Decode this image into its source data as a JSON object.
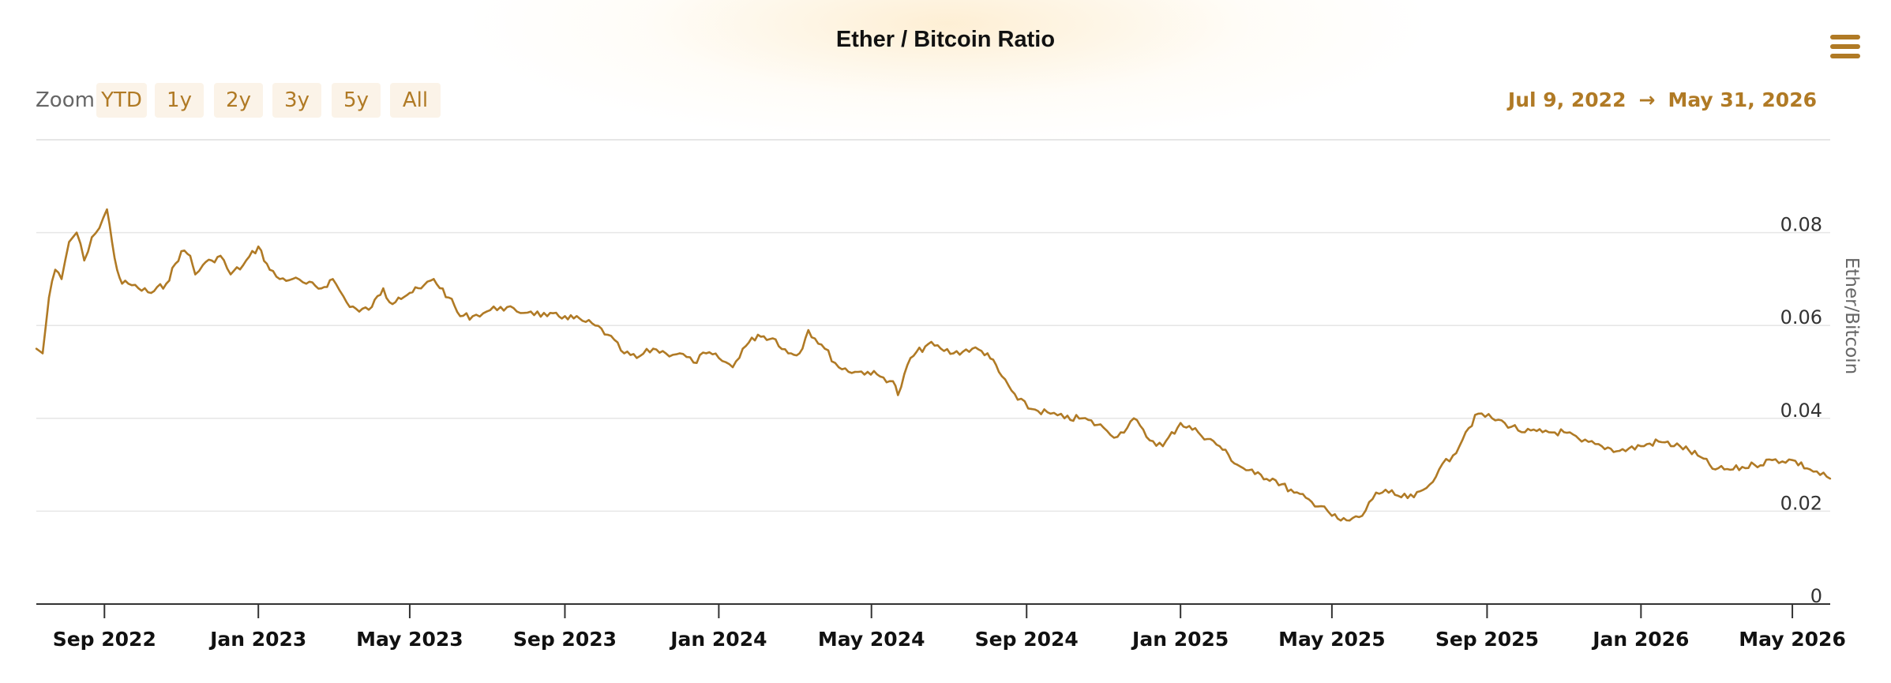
{
  "title": "Ether / Bitcoin Ratio",
  "menu_icon": "hamburger-menu-icon",
  "zoom": {
    "label": "Zoom",
    "buttons": [
      "YTD",
      "1y",
      "2y",
      "3y",
      "5y",
      "All"
    ]
  },
  "range": {
    "from": "Jul 9, 2022",
    "arrow": "→",
    "to": "May 31, 2026"
  },
  "colors": {
    "accent": "#b07a25",
    "line": "#b07a25",
    "grid": "#e6e6e6",
    "button_bg": "#fbf3e8"
  },
  "chart_data": {
    "type": "line",
    "title": "Ether / Bitcoin Ratio",
    "xlabel": "",
    "ylabel": "Ether/Bitcoin",
    "ylim": [
      0,
      0.1
    ],
    "xlim": [
      "2022-07-09",
      "2026-05-31"
    ],
    "yticks": [
      "0",
      "0.02",
      "0.04",
      "0.06",
      "0.08"
    ],
    "xticks": [
      {
        "date": "2022-09-01",
        "label": "Sep 2022"
      },
      {
        "date": "2023-01-01",
        "label": "Jan 2023"
      },
      {
        "date": "2023-05-01",
        "label": "May 2023"
      },
      {
        "date": "2023-09-01",
        "label": "Sep 2023"
      },
      {
        "date": "2024-01-01",
        "label": "Jan 2024"
      },
      {
        "date": "2024-05-01",
        "label": "May 2024"
      },
      {
        "date": "2024-09-01",
        "label": "Sep 2024"
      },
      {
        "date": "2025-01-01",
        "label": "Jan 2025"
      },
      {
        "date": "2025-05-01",
        "label": "May 2025"
      },
      {
        "date": "2025-09-01",
        "label": "Sep 2025"
      },
      {
        "date": "2026-01-01",
        "label": "Jan 2026"
      },
      {
        "date": "2026-05-01",
        "label": "May 2026"
      }
    ],
    "grid": true,
    "legend": "none",
    "series": [
      {
        "x": [
          "2022-07-09",
          "2022-07-14",
          "2022-07-19",
          "2022-07-24",
          "2022-07-29",
          "2022-08-04",
          "2022-08-10",
          "2022-08-16",
          "2022-08-22",
          "2022-08-28",
          "2022-09-03",
          "2022-09-07",
          "2022-09-11",
          "2022-09-15",
          "2022-09-20",
          "2022-09-28",
          "2022-10-08",
          "2022-10-20",
          "2022-11-01",
          "2022-11-08",
          "2022-11-12",
          "2022-11-18",
          "2022-11-25",
          "2022-12-02",
          "2022-12-10",
          "2022-12-20",
          "2023-01-01",
          "2023-01-10",
          "2023-01-18",
          "2023-01-28",
          "2023-02-08",
          "2023-02-20",
          "2023-03-01",
          "2023-03-12",
          "2023-03-22",
          "2023-04-01",
          "2023-04-10",
          "2023-04-15",
          "2023-04-22",
          "2023-05-01",
          "2023-05-10",
          "2023-05-20",
          "2023-06-01",
          "2023-06-10",
          "2023-06-20",
          "2023-07-01",
          "2023-07-12",
          "2023-07-25",
          "2023-08-05",
          "2023-08-18",
          "2023-09-01",
          "2023-09-15",
          "2023-09-25",
          "2023-10-05",
          "2023-10-18",
          "2023-10-28",
          "2023-11-10",
          "2023-11-20",
          "2023-12-01",
          "2023-12-12",
          "2023-12-22",
          "2024-01-01",
          "2024-01-12",
          "2024-01-20",
          "2024-02-01",
          "2024-02-15",
          "2024-02-25",
          "2024-03-05",
          "2024-03-12",
          "2024-03-25",
          "2024-04-05",
          "2024-04-18",
          "2024-04-28",
          "2024-05-08",
          "2024-05-18",
          "2024-05-22",
          "2024-06-01",
          "2024-06-15",
          "2024-06-25",
          "2024-07-05",
          "2024-07-20",
          "2024-08-01",
          "2024-08-10",
          "2024-08-25",
          "2024-09-05",
          "2024-09-20",
          "2024-10-01",
          "2024-10-15",
          "2024-11-01",
          "2024-11-12",
          "2024-11-25",
          "2024-12-05",
          "2024-12-18",
          "2025-01-01",
          "2025-01-15",
          "2025-02-01",
          "2025-02-15",
          "2025-03-01",
          "2025-03-15",
          "2025-04-01",
          "2025-04-15",
          "2025-04-25",
          "2025-05-01",
          "2025-05-08",
          "2025-05-15",
          "2025-05-25",
          "2025-06-05",
          "2025-06-15",
          "2025-06-25",
          "2025-07-05",
          "2025-07-15",
          "2025-07-25",
          "2025-08-05",
          "2025-08-15",
          "2025-08-25",
          "2025-09-05",
          "2025-09-15",
          "2025-10-01",
          "2025-10-15",
          "2025-11-01",
          "2025-11-15",
          "2025-12-01",
          "2025-12-15",
          "2026-01-01",
          "2026-01-15",
          "2026-02-01",
          "2026-02-15",
          "2026-03-01",
          "2026-03-15",
          "2026-04-01",
          "2026-04-15",
          "2026-05-01",
          "2026-05-15",
          "2026-05-31"
        ],
        "y": [
          0.055,
          0.054,
          0.066,
          0.072,
          0.07,
          0.078,
          0.08,
          0.074,
          0.079,
          0.081,
          0.085,
          0.078,
          0.072,
          0.069,
          0.069,
          0.068,
          0.067,
          0.069,
          0.076,
          0.075,
          0.071,
          0.073,
          0.074,
          0.075,
          0.071,
          0.073,
          0.077,
          0.072,
          0.07,
          0.07,
          0.069,
          0.068,
          0.07,
          0.065,
          0.063,
          0.064,
          0.068,
          0.065,
          0.066,
          0.067,
          0.068,
          0.07,
          0.066,
          0.062,
          0.062,
          0.063,
          0.064,
          0.063,
          0.063,
          0.062,
          0.062,
          0.061,
          0.06,
          0.058,
          0.054,
          0.053,
          0.055,
          0.054,
          0.054,
          0.052,
          0.054,
          0.053,
          0.051,
          0.055,
          0.058,
          0.057,
          0.054,
          0.054,
          0.059,
          0.055,
          0.051,
          0.05,
          0.05,
          0.049,
          0.048,
          0.045,
          0.053,
          0.056,
          0.055,
          0.054,
          0.055,
          0.054,
          0.05,
          0.044,
          0.042,
          0.041,
          0.04,
          0.04,
          0.038,
          0.036,
          0.04,
          0.036,
          0.034,
          0.039,
          0.037,
          0.034,
          0.03,
          0.028,
          0.027,
          0.024,
          0.022,
          0.021,
          0.019,
          0.018,
          0.018,
          0.019,
          0.024,
          0.024,
          0.023,
          0.023,
          0.025,
          0.029,
          0.032,
          0.037,
          0.041,
          0.04,
          0.039,
          0.037,
          0.037,
          0.037,
          0.035,
          0.034,
          0.033,
          0.034,
          0.035,
          0.034,
          0.032,
          0.029,
          0.029,
          0.03,
          0.031,
          0.031,
          0.029,
          0.027
        ]
      }
    ]
  }
}
